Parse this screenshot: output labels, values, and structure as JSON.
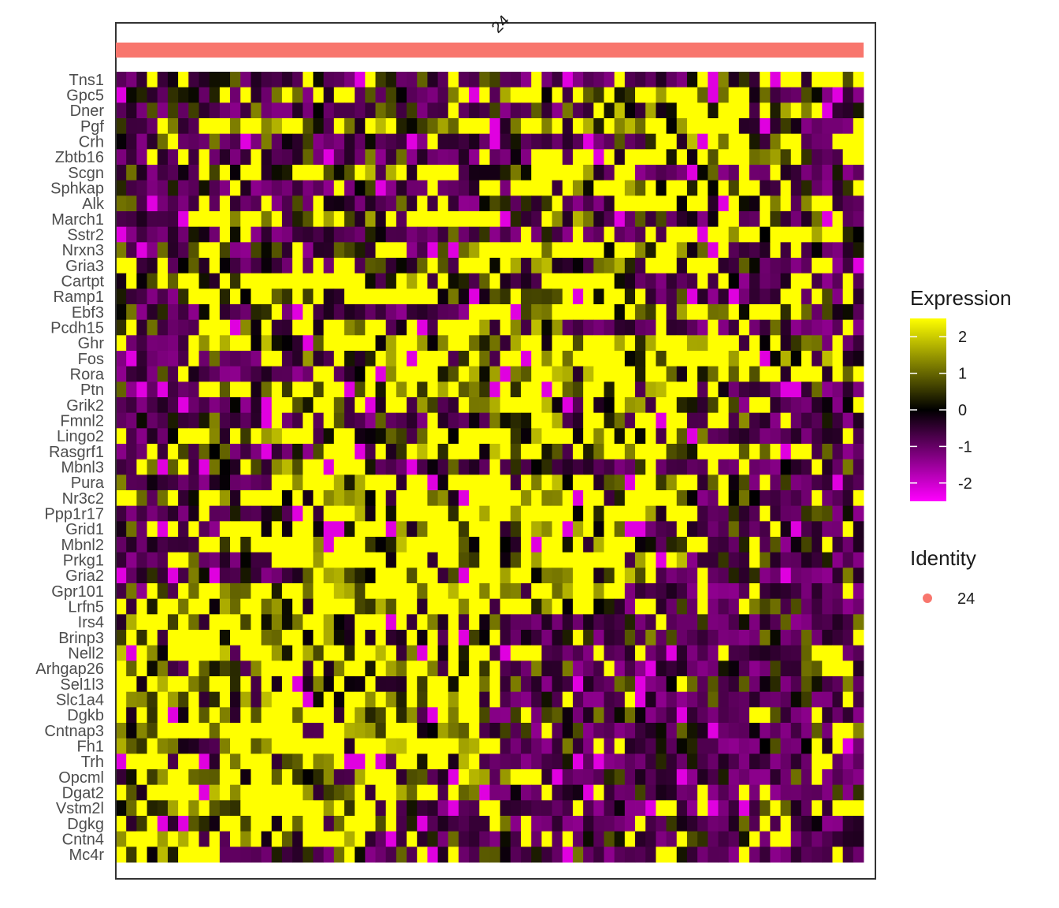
{
  "chart_data": {
    "type": "heatmap",
    "title": "",
    "xlabel": "",
    "ylabel": "",
    "group_labels": [
      "24"
    ],
    "genes": [
      "Tns1",
      "Gpc5",
      "Dner",
      "Pgf",
      "Crh",
      "Zbtb16",
      "Scgn",
      "Sphkap",
      "Alk",
      "March1",
      "Sstr2",
      "Nrxn3",
      "Gria3",
      "Cartpt",
      "Ramp1",
      "Ebf3",
      "Pcdh15",
      "Ghr",
      "Fos",
      "Rora",
      "Ptn",
      "Grik2",
      "Fmnl2",
      "Lingo2",
      "Rasgrf1",
      "Mbnl3",
      "Pura",
      "Nr3c2",
      "Ppp1r17",
      "Grid1",
      "Mbnl2",
      "Prkg1",
      "Gria2",
      "Gpr101",
      "Lrfn5",
      "Irs4",
      "Brinp3",
      "Nell2",
      "Arhgap26",
      "Sel1l3",
      "Slc1a4",
      "Dgkb",
      "Cntnap3",
      "Fh1",
      "Trh",
      "Opcml",
      "Dgat2",
      "Vstm2l",
      "Dgkg",
      "Cntn4",
      "Mc4r"
    ],
    "n_cells": 72,
    "high_block_cells": [
      [
        55,
        68
      ],
      [
        32,
        59
      ],
      [
        46,
        66
      ],
      [
        8,
        60
      ],
      [
        51,
        65
      ],
      [
        40,
        67
      ],
      [
        10,
        45
      ],
      [
        40,
        64
      ],
      [
        48,
        68
      ],
      [
        8,
        45
      ],
      [
        50,
        69
      ],
      [
        30,
        58
      ],
      [
        32,
        59
      ],
      [
        1,
        48
      ],
      [
        6,
        51
      ],
      [
        34,
        65
      ],
      [
        8,
        42
      ],
      [
        8,
        64
      ],
      [
        18,
        70
      ],
      [
        23,
        71
      ],
      [
        8,
        58
      ],
      [
        16,
        58
      ],
      [
        36,
        61
      ],
      [
        8,
        53
      ],
      [
        19,
        68
      ],
      [
        2,
        24
      ],
      [
        15,
        60
      ],
      [
        0,
        54
      ],
      [
        18,
        54
      ],
      [
        10,
        49
      ],
      [
        8,
        53
      ],
      [
        14,
        54
      ],
      [
        19,
        49
      ],
      [
        6,
        47
      ],
      [
        0,
        46
      ],
      [
        0,
        35
      ],
      [
        0,
        36
      ],
      [
        0,
        34
      ],
      [
        0,
        36
      ],
      [
        0,
        36
      ],
      [
        0,
        33
      ],
      [
        0,
        34
      ],
      [
        0,
        34
      ],
      [
        0,
        36
      ],
      [
        0,
        34
      ],
      [
        0,
        42
      ],
      [
        0,
        34
      ],
      [
        0,
        26
      ],
      [
        0,
        30
      ],
      [
        0,
        22
      ],
      [
        0,
        9
      ]
    ],
    "note_seed": 24,
    "color_scale": {
      "min": -2.5,
      "max": 2.5,
      "low": "#ff00ff",
      "mid": "#000000",
      "high": "#ffff00"
    },
    "legend": {
      "title": "Expression",
      "ticks": [
        "2",
        "1",
        "0",
        "-1",
        "-2"
      ],
      "tick_values": [
        2,
        1,
        0,
        -1,
        -2
      ],
      "position": "right"
    },
    "identity_legend": {
      "title": "Identity",
      "items": [
        {
          "label": "24",
          "color": "#f8766d"
        }
      ]
    }
  }
}
